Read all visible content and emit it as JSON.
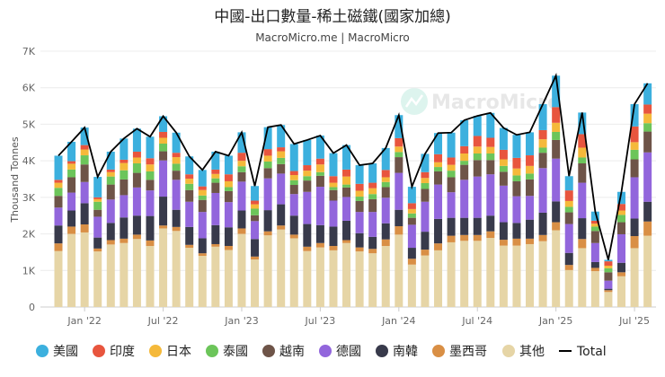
{
  "chart_data": {
    "type": "bar",
    "stacked": true,
    "title": "中國-出口數量-稀土磁鐵(國家加總)",
    "subtitle": "MacroMicro.me | MacroMicro",
    "watermark": "MacroMicro",
    "ylabel": "Thousand Tonnes",
    "ylim": [
      0,
      7000
    ],
    "yticks": [
      "0",
      "1K",
      "2K",
      "3K",
      "4K",
      "5K",
      "6K",
      "7K"
    ],
    "xtick_labels": [
      {
        "month": "2022-01",
        "label": "Jan '22"
      },
      {
        "month": "2022-07",
        "label": "Jul '22"
      },
      {
        "month": "2023-01",
        "label": "Jan '23"
      },
      {
        "month": "2023-07",
        "label": "Jul '23"
      },
      {
        "month": "2024-01",
        "label": "Jan '24"
      },
      {
        "month": "2024-07",
        "label": "Jul '24"
      },
      {
        "month": "2025-01",
        "label": "Jan '25"
      },
      {
        "month": "2025-07",
        "label": "Jul '25"
      }
    ],
    "grid": true,
    "legend": "bottom",
    "x": [
      "2021-11",
      "2021-12",
      "2022-01",
      "2022-02",
      "2022-03",
      "2022-04",
      "2022-05",
      "2022-06",
      "2022-07",
      "2022-08",
      "2022-09",
      "2022-10",
      "2022-11",
      "2022-12",
      "2023-01",
      "2023-02",
      "2023-03",
      "2023-04",
      "2023-05",
      "2023-06",
      "2023-07",
      "2023-08",
      "2023-09",
      "2023-10",
      "2023-11",
      "2023-12",
      "2024-01",
      "2024-02",
      "2024-03",
      "2024-04",
      "2024-05",
      "2024-06",
      "2024-07",
      "2024-08",
      "2024-09",
      "2024-10",
      "2024-11",
      "2024-12",
      "2025-01",
      "2025-02",
      "2025-03",
      "2025-04",
      "2025-05",
      "2025-06",
      "2025-07",
      "2025-08"
    ],
    "series": [
      {
        "name": "其他",
        "color": "#e6d5a6",
        "values": [
          1530,
          2000,
          2040,
          1520,
          1710,
          1750,
          1860,
          1670,
          2150,
          2080,
          1620,
          1400,
          1650,
          1560,
          2000,
          1300,
          1960,
          2120,
          1880,
          1530,
          1630,
          1550,
          1750,
          1520,
          1470,
          1670,
          1980,
          1160,
          1410,
          1550,
          1770,
          1810,
          1810,
          1890,
          1680,
          1680,
          1720,
          1800,
          2100,
          1010,
          1610,
          980,
          410,
          840,
          1610,
          1950
        ]
      },
      {
        "name": "墨西哥",
        "color": "#d98f45",
        "values": [
          210,
          200,
          220,
          80,
          120,
          120,
          120,
          150,
          80,
          110,
          80,
          70,
          70,
          110,
          150,
          80,
          110,
          110,
          100,
          120,
          120,
          120,
          80,
          110,
          120,
          180,
          230,
          160,
          160,
          190,
          180,
          160,
          160,
          180,
          160,
          190,
          150,
          170,
          220,
          140,
          250,
          90,
          50,
          110,
          330,
          390
        ]
      },
      {
        "name": "南韓",
        "color": "#383a4b",
        "values": [
          490,
          440,
          580,
          300,
          470,
          580,
          520,
          670,
          790,
          470,
          490,
          410,
          520,
          510,
          490,
          480,
          580,
          580,
          520,
          620,
          490,
          530,
          530,
          390,
          330,
          440,
          450,
          300,
          490,
          670,
          490,
          470,
          470,
          430,
          480,
          430,
          520,
          610,
          570,
          330,
          570,
          160,
          40,
          260,
          480,
          540
        ]
      },
      {
        "name": "德國",
        "color": "#9266dc",
        "values": [
          490,
          490,
          580,
          570,
          640,
          610,
          770,
          700,
          990,
          820,
          690,
          720,
          880,
          690,
          790,
          490,
          870,
          840,
          590,
          880,
          1050,
          710,
          650,
          580,
          680,
          700,
          1010,
          630,
          820,
          940,
          700,
          1040,
          1130,
          1130,
          1000,
          730,
          650,
          1220,
          1170,
          790,
          970,
          520,
          220,
          780,
          1130,
          1350
        ]
      },
      {
        "name": "越南",
        "color": "#6e5448",
        "values": [
          320,
          420,
          480,
          190,
          410,
          430,
          400,
          290,
          250,
          250,
          320,
          330,
          280,
          300,
          260,
          160,
          280,
          260,
          250,
          310,
          300,
          290,
          260,
          300,
          350,
          290,
          430,
          190,
          350,
          360,
          410,
          410,
          450,
          390,
          380,
          410,
          450,
          420,
          510,
          320,
          530,
          330,
          230,
          330,
          490,
          570
        ]
      },
      {
        "name": "泰國",
        "color": "#6cc55a",
        "values": [
          220,
          210,
          250,
          220,
          220,
          250,
          260,
          230,
          210,
          190,
          170,
          120,
          120,
          110,
          160,
          180,
          180,
          170,
          130,
          120,
          100,
          80,
          80,
          120,
          140,
          140,
          140,
          120,
          160,
          120,
          180,
          110,
          180,
          180,
          160,
          160,
          160,
          140,
          220,
          150,
          160,
          120,
          110,
          200,
          260,
          230
        ]
      },
      {
        "name": "日本",
        "color": "#f5b93a",
        "values": [
          140,
          160,
          160,
          70,
          120,
          200,
          160,
          190,
          160,
          180,
          140,
          150,
          120,
          160,
          150,
          120,
          160,
          180,
          140,
          150,
          210,
          120,
          220,
          160,
          160,
          130,
          150,
          120,
          140,
          130,
          160,
          200,
          190,
          180,
          180,
          190,
          210,
          230,
          250,
          160,
          270,
          80,
          70,
          120,
          210,
          260
        ]
      },
      {
        "name": "印度",
        "color": "#e8553e",
        "values": [
          80,
          70,
          120,
          50,
          70,
          90,
          160,
          170,
          160,
          120,
          120,
          100,
          120,
          190,
          220,
          100,
          180,
          110,
          110,
          150,
          160,
          180,
          190,
          190,
          150,
          200,
          230,
          160,
          160,
          220,
          200,
          200,
          290,
          250,
          260,
          290,
          290,
          250,
          430,
          290,
          370,
          80,
          120,
          180,
          430,
          250
        ]
      },
      {
        "name": "美國",
        "color": "#3cb0de",
        "values": [
          660,
          530,
          480,
          560,
          490,
          580,
          630,
          590,
          430,
          550,
          490,
          450,
          490,
          510,
          560,
          400,
          600,
          610,
          740,
          690,
          630,
          630,
          670,
          510,
          530,
          600,
          630,
          450,
          500,
          580,
          680,
          710,
          550,
          680,
          600,
          630,
          630,
          710,
          860,
          390,
          590,
          250,
          40,
          330,
          610,
          580
        ]
      }
    ],
    "line": {
      "name": "Total",
      "color": "#000000"
    },
    "legend_order": [
      "美國",
      "印度",
      "日本",
      "泰國",
      "越南",
      "德國",
      "南韓",
      "墨西哥",
      "其他"
    ]
  }
}
